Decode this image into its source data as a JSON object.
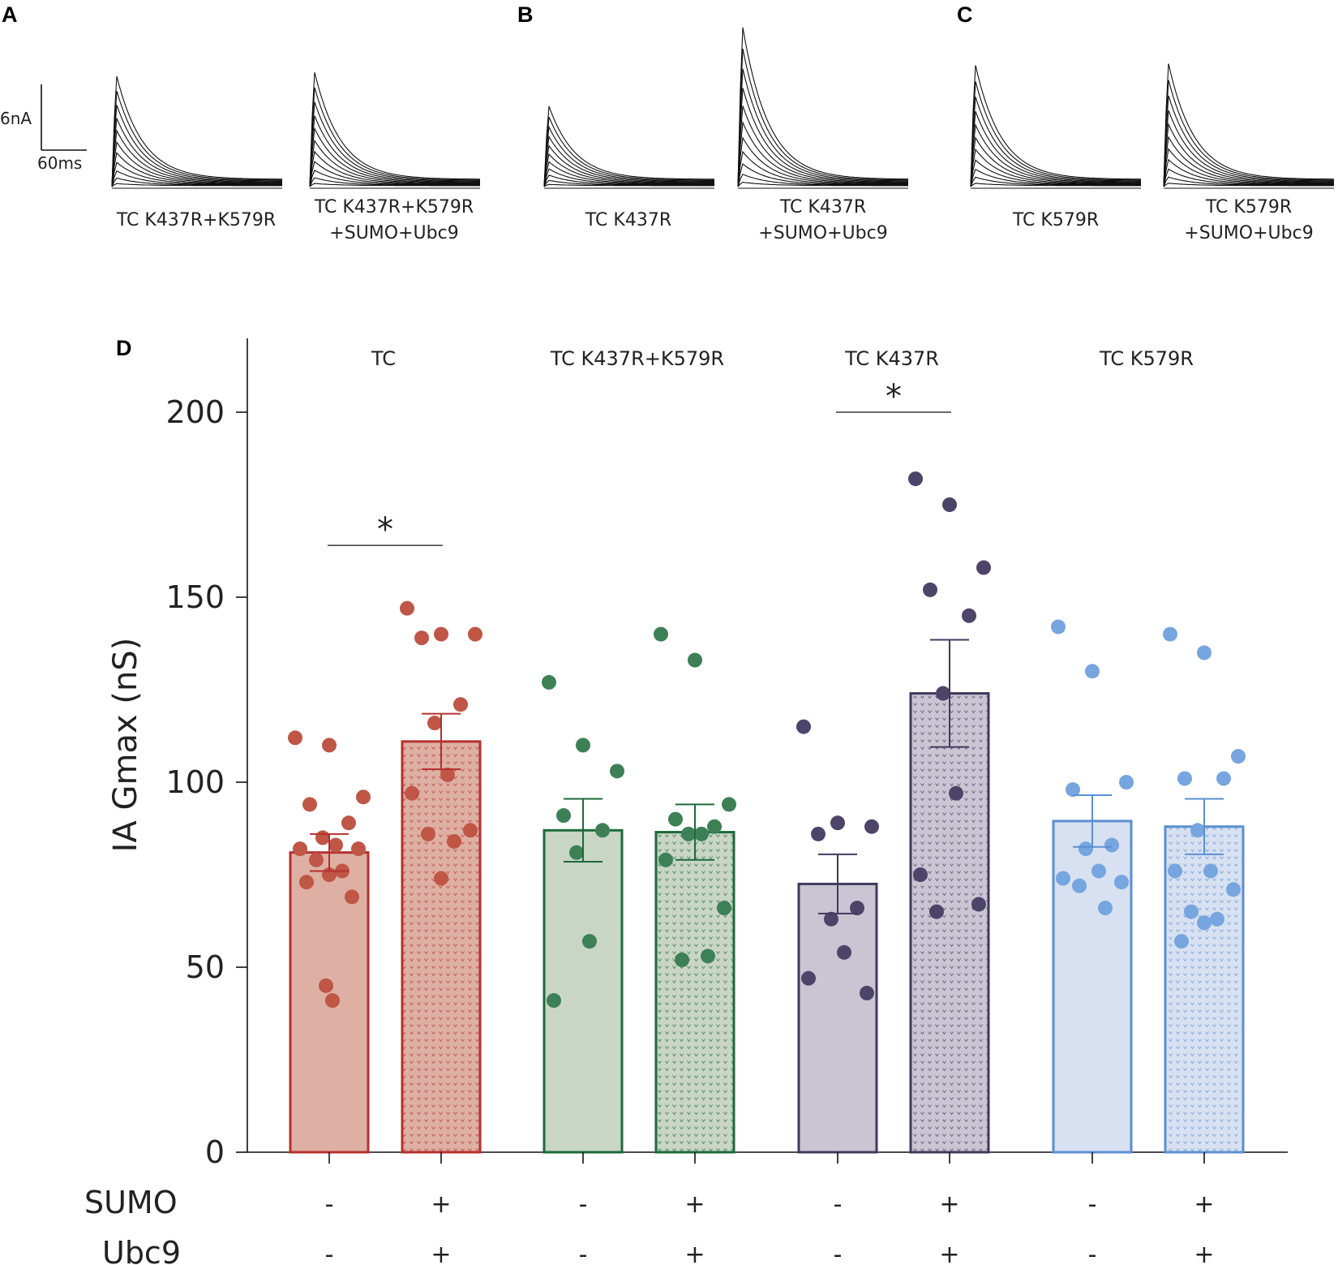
{
  "panels": {
    "A": "A",
    "B": "B",
    "C": "C",
    "D": "D"
  },
  "scale_bar": {
    "current": "6nA",
    "time": "60ms"
  },
  "traces": [
    {
      "panel": "A",
      "label_lines": [
        "TC K437R+K579R"
      ],
      "peak_nA": 14.0
    },
    {
      "panel": "A",
      "label_lines": [
        "TC K437R+K579R",
        "+SUMO+Ubc9"
      ],
      "peak_nA": 14.5
    },
    {
      "panel": "B",
      "label_lines": [
        "TC K437R"
      ],
      "peak_nA": 10.2
    },
    {
      "panel": "B",
      "label_lines": [
        "TC K437R",
        "+SUMO+Ubc9"
      ],
      "peak_nA": 20.2
    },
    {
      "panel": "C",
      "label_lines": [
        "TC K579R"
      ],
      "peak_nA": 15.4
    },
    {
      "panel": "C",
      "label_lines": [
        "TC K579R",
        "+SUMO+Ubc9"
      ],
      "peak_nA": 15.6
    }
  ],
  "row_labels": {
    "sumo": "SUMO",
    "ubc9": "Ubc9"
  },
  "colors": {
    "TC": {
      "stroke": "#b5302f",
      "fill": "#deb0a3",
      "dot": "#bf5646"
    },
    "K437R+K579R": {
      "stroke": "#1e6a3a",
      "fill": "#c9d5c5",
      "dot": "#3d8055"
    },
    "K437R": {
      "stroke": "#3f3a5e",
      "fill": "#cbc5d3",
      "dot": "#4d446a"
    },
    "K579R": {
      "stroke": "#5b8fd2",
      "fill": "#d8e1f1",
      "dot": "#76a5df"
    }
  },
  "chart_data": {
    "type": "bar",
    "title": "",
    "xlabel": "",
    "ylabel": "IA Gmax (nS)",
    "ylim": [
      0,
      220
    ],
    "yticks": [
      0,
      50,
      100,
      150,
      200
    ],
    "groups": [
      {
        "name": "TC",
        "color_key": "TC",
        "significance": {
          "label": "*",
          "between": [
            0,
            1
          ],
          "y": 164
        },
        "bars": [
          {
            "sumo": "-",
            "ubc9": "-",
            "mean": 81,
            "sem": 5,
            "points": [
              112,
              110,
              96,
              94,
              89,
              85,
              83,
              82,
              82,
              79,
              76,
              75,
              73,
              69,
              45,
              41
            ]
          },
          {
            "sumo": "+",
            "ubc9": "+",
            "mean": 111,
            "sem": 7.5,
            "points": [
              147,
              140,
              140,
              139,
              121,
              116,
              102,
              97,
              87,
              86,
              84,
              74
            ]
          }
        ]
      },
      {
        "name": "TC K437R+K579R",
        "color_key": "K437R+K579R",
        "significance": null,
        "bars": [
          {
            "sumo": "-",
            "ubc9": "-",
            "mean": 87,
            "sem": 8.5,
            "points": [
              127,
              110,
              103,
              91,
              87,
              81,
              57,
              41
            ]
          },
          {
            "sumo": "+",
            "ubc9": "+",
            "mean": 86.5,
            "sem": 7.5,
            "points": [
              140,
              133,
              94,
              90,
              88,
              86,
              86,
              79,
              66,
              52,
              53
            ]
          }
        ]
      },
      {
        "name": "TC K437R",
        "color_key": "K437R",
        "significance": {
          "label": "*",
          "between": [
            0,
            1
          ],
          "y": 200
        },
        "bars": [
          {
            "sumo": "-",
            "ubc9": "-",
            "mean": 72.5,
            "sem": 8,
            "points": [
              115,
              89,
              88,
              86,
              66,
              63,
              54,
              47,
              43
            ]
          },
          {
            "sumo": "+",
            "ubc9": "+",
            "mean": 124,
            "sem": 14.5,
            "points": [
              182,
              175,
              158,
              152,
              145,
              124,
              97,
              75,
              67,
              65
            ]
          }
        ]
      },
      {
        "name": "TC K579R",
        "color_key": "K579R",
        "significance": null,
        "bars": [
          {
            "sumo": "-",
            "ubc9": "-",
            "mean": 89.5,
            "sem": 7,
            "points": [
              142,
              130,
              100,
              98,
              83,
              82,
              76,
              74,
              73,
              72,
              66
            ]
          },
          {
            "sumo": "+",
            "ubc9": "+",
            "mean": 88,
            "sem": 7.5,
            "points": [
              140,
              135,
              107,
              101,
              101,
              87,
              76,
              76,
              71,
              65,
              63,
              62,
              57
            ]
          }
        ]
      }
    ]
  }
}
